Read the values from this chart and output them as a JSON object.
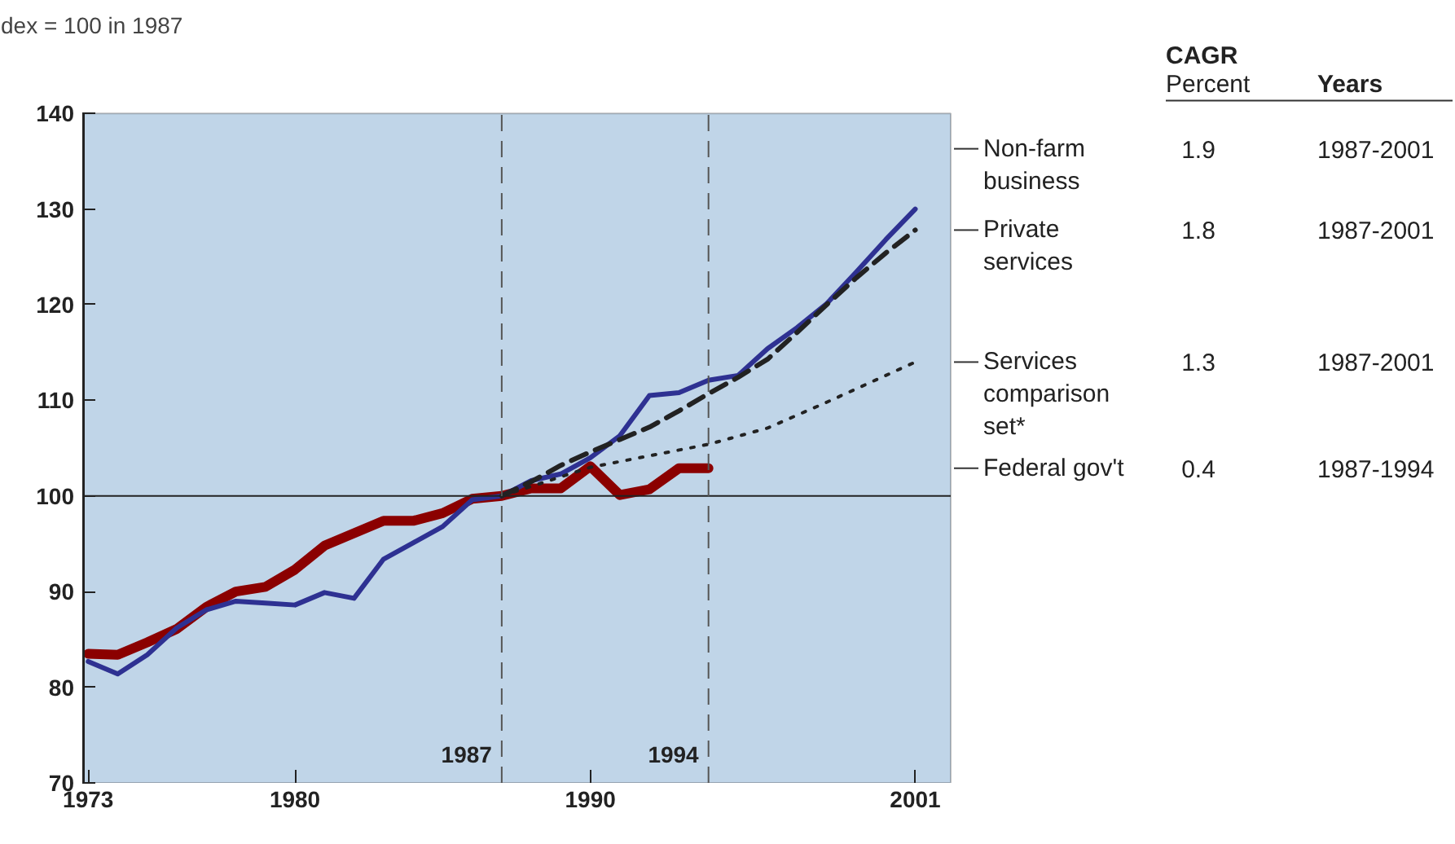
{
  "chart_data": {
    "type": "line",
    "title": "dex = 100 in 1987",
    "xlim": [
      1972.8,
      2002.2
    ],
    "xticks": [
      1973,
      1980,
      1990,
      2001
    ],
    "ylim": [
      70,
      140
    ],
    "yticks": [
      70,
      80,
      90,
      100,
      110,
      120,
      130,
      140
    ],
    "grid": false,
    "legend": "right",
    "marker": "none",
    "series": [
      {
        "name": "Non-farm business",
        "color": "#2e3192",
        "line_style": "solid",
        "x": [
          1973,
          1974,
          1975,
          1976,
          1977,
          1978,
          1979,
          1980,
          1981,
          1982,
          1983,
          1984,
          1985,
          1986,
          1987,
          1988,
          1989,
          1990,
          1991,
          1992,
          1993,
          1994,
          1995,
          1996,
          1997,
          1998,
          1999,
          2000,
          2001
        ],
        "values": [
          82.7,
          81.4,
          83.4,
          86.2,
          88.1,
          89.0,
          88.8,
          88.6,
          89.9,
          89.3,
          93.4,
          95.1,
          96.8,
          99.6,
          100,
          101.6,
          102.3,
          104.0,
          106.3,
          110.5,
          110.8,
          112.1,
          112.6,
          115.4,
          117.6,
          120.1,
          123.4,
          126.8,
          130.0
        ]
      },
      {
        "name": "Private services",
        "color": "#222222",
        "line_style": "dashed",
        "x": [
          1987,
          1988,
          1989,
          1990,
          1991,
          1992,
          1993,
          1994,
          1995,
          1996,
          1997,
          1998,
          1999,
          2000,
          2001
        ],
        "values": [
          100,
          101.5,
          103.2,
          104.6,
          105.9,
          107.2,
          108.9,
          110.7,
          112.4,
          114.3,
          117.1,
          120.0,
          122.8,
          125.4,
          127.8
        ]
      },
      {
        "name": "Services comparison set*",
        "color": "#222222",
        "line_style": "dotted",
        "x": [
          1987,
          1988,
          1989,
          1990,
          1992,
          1994,
          1996,
          1998,
          2000,
          2001
        ],
        "values": [
          100,
          101.0,
          102.0,
          103.0,
          104.2,
          105.4,
          107.1,
          109.8,
          112.6,
          114.0
        ]
      },
      {
        "name": "Federal gov't",
        "color": "#8b0000",
        "line_style": "solid",
        "x": [
          1973,
          1974,
          1975,
          1976,
          1977,
          1978,
          1979,
          1980,
          1981,
          1982,
          1983,
          1984,
          1985,
          1986,
          1987,
          1988,
          1989,
          1990,
          1991,
          1992,
          1993,
          1994
        ],
        "values": [
          83.5,
          83.4,
          84.7,
          86.1,
          88.4,
          90.0,
          90.5,
          92.3,
          94.8,
          96.1,
          97.4,
          97.4,
          98.2,
          99.7,
          100.0,
          100.8,
          100.8,
          103.1,
          100.1,
          100.7,
          102.9,
          102.9
        ]
      }
    ],
    "ref_lines": [
      {
        "axis": "y",
        "value": 100,
        "color": "#222222",
        "line_style": "solid"
      },
      {
        "axis": "x",
        "value": 1987,
        "label": "1987",
        "color": "#555555",
        "line_style": "dashed"
      },
      {
        "axis": "x",
        "value": 1994,
        "label": "1994",
        "color": "#555555",
        "line_style": "dashed"
      }
    ],
    "annotations": [
      "CAGR",
      "Percent",
      "Years",
      "1.9",
      "1987-2001",
      "1.8",
      "1987-2001",
      "1.3",
      "1987-2001",
      "0.4",
      "1987-1994"
    ]
  }
}
